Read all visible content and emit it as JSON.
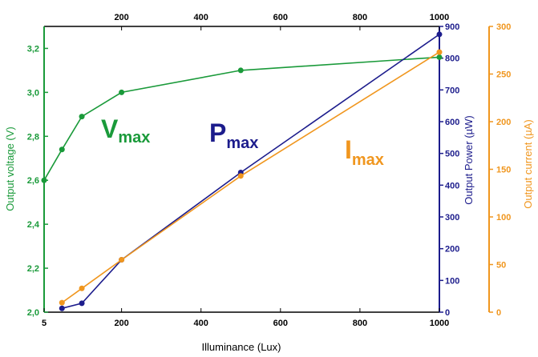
{
  "chart_data": {
    "type": "line",
    "xlabel": "Illuminance (Lux)",
    "x_ticks_bottom": [
      "5",
      "200",
      "400",
      "600",
      "800",
      "1000"
    ],
    "x_ticks_top": [
      "200",
      "400",
      "600",
      "800",
      "1000"
    ],
    "xlim": [
      5,
      1000
    ],
    "axes": {
      "voltage": {
        "label": "Output voltage (V)",
        "ylim": [
          2.0,
          3.3
        ],
        "ticks": [
          "2,0",
          "2,2",
          "2,4",
          "2,6",
          "2,8",
          "3,0",
          "3,2"
        ],
        "color": "#1a9a3a",
        "side": "left"
      },
      "power": {
        "label": "Output Power (µW)",
        "ylim": [
          0,
          900
        ],
        "ticks": [
          "0",
          "100",
          "200",
          "300",
          "400",
          "500",
          "600",
          "700",
          "800",
          "900"
        ],
        "color": "#1c1c8c",
        "side": "right"
      },
      "current": {
        "label": "Output current (µA)",
        "ylim": [
          0,
          300
        ],
        "ticks": [
          "0",
          "50",
          "100",
          "150",
          "200",
          "250",
          "300"
        ],
        "color": "#f0961e",
        "side": "right-outer"
      }
    },
    "series": [
      {
        "name": "Vmax",
        "axis": "voltage",
        "color": "#1a9a3a",
        "x": [
          5,
          50,
          100,
          200,
          500,
          1000
        ],
        "y": [
          2.6,
          2.74,
          2.89,
          3.0,
          3.1,
          3.16
        ]
      },
      {
        "name": "Pmax",
        "axis": "power",
        "color": "#1c1c8c",
        "x": [
          50,
          100,
          200,
          500,
          1000
        ],
        "y": [
          12,
          28,
          165,
          440,
          875
        ]
      },
      {
        "name": "Imax",
        "axis": "current",
        "color": "#f0961e",
        "x": [
          50,
          100,
          200,
          500,
          1000
        ],
        "y": [
          10,
          25,
          55,
          143,
          273
        ]
      }
    ],
    "labels": {
      "vmax": {
        "main": "V",
        "sub": "max"
      },
      "pmax": {
        "main": "P",
        "sub": "max"
      },
      "imax": {
        "main": "I",
        "sub": "max"
      }
    },
    "grid": false
  }
}
